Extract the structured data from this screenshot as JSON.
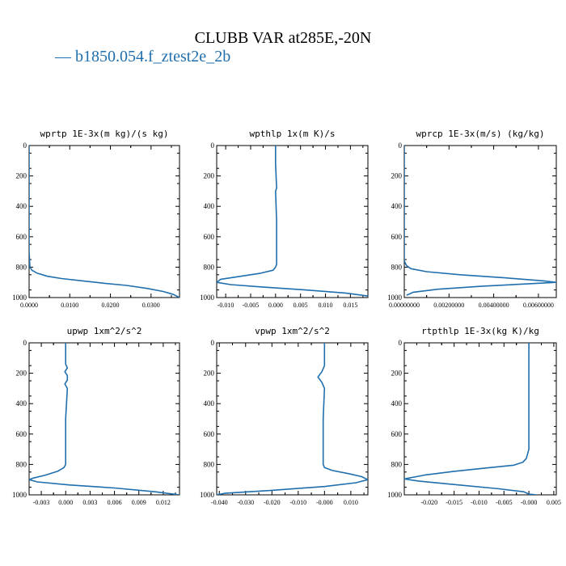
{
  "figure": {
    "title": "CLUBB VAR at285E,-20N",
    "legend_label": "b1850.054.f_ztest2e_2b",
    "line_color": "#1f6fae"
  },
  "chart_data": [
    {
      "type": "line",
      "title": "wprtp  1E-3x(m kg)/(s kg)",
      "xlim": [
        0.0,
        0.037
      ],
      "xticks": [
        0.0,
        0.01,
        0.02,
        0.03
      ],
      "xtick_labels": [
        "0.0000",
        "0.0100",
        "0.0200",
        "0.0300"
      ],
      "ylim": [
        1000,
        0
      ],
      "yticks": [
        0,
        200,
        400,
        600,
        800,
        1000
      ],
      "series": [
        {
          "x": [
            0.0,
            0.0,
            0.0,
            0.0002,
            0.0007,
            0.002,
            0.0045,
            0.008,
            0.013,
            0.018,
            0.024,
            0.029,
            0.033,
            0.0355,
            0.037
          ],
          "y": [
            0,
            300,
            700,
            800,
            820,
            840,
            860,
            875,
            890,
            905,
            920,
            940,
            960,
            980,
            1000
          ]
        }
      ]
    },
    {
      "type": "line",
      "title": "wpthlp  1x(m K)/s",
      "xlim": [
        -0.0118,
        0.0185
      ],
      "xticks": [
        -0.01,
        -0.005,
        0.0,
        0.005,
        0.01,
        0.015
      ],
      "xtick_labels": [
        "-0.010",
        "-0.005",
        "0.000",
        "0.005",
        "0.010",
        "0.015"
      ],
      "ylim": [
        1000,
        0
      ],
      "yticks": [
        0,
        200,
        400,
        600,
        800,
        1000
      ],
      "series": [
        {
          "x": [
            0.0,
            0.0,
            0.0002,
            0.0,
            0.0002,
            0.0002,
            0.0,
            -0.0005,
            -0.003,
            -0.007,
            -0.011,
            -0.0118,
            -0.009,
            -0.003,
            0.006,
            0.014,
            0.0185
          ],
          "y": [
            0,
            120,
            280,
            300,
            500,
            780,
            800,
            820,
            840,
            860,
            880,
            900,
            915,
            930,
            950,
            970,
            990
          ]
        }
      ]
    },
    {
      "type": "line",
      "title": "wprcp  1E-3x(m/s) (kg/kg)",
      "xlim": [
        0.0,
        0.0068
      ],
      "xticks": [
        0.0,
        0.002,
        0.004,
        0.006
      ],
      "xtick_labels": [
        "0.00000000",
        "0.00200000",
        "0.00400000",
        "0.00600000"
      ],
      "ylim": [
        1000,
        0
      ],
      "yticks": [
        0,
        200,
        400,
        600,
        800,
        1000
      ],
      "series": [
        {
          "x": [
            0.0,
            0.0,
            0.0001,
            0.0003,
            0.001,
            0.0025,
            0.0045,
            0.0062,
            0.0068,
            0.0055,
            0.0035,
            0.0015,
            0.0004,
            0.0001
          ],
          "y": [
            0,
            760,
            790,
            810,
            830,
            850,
            870,
            890,
            900,
            910,
            925,
            945,
            965,
            985
          ]
        }
      ]
    },
    {
      "type": "line",
      "title": "upwp  1xm^2/s^2",
      "xlim": [
        -0.0045,
        0.014
      ],
      "xticks": [
        -0.003,
        0.0,
        0.003,
        0.006,
        0.009,
        0.012
      ],
      "xtick_labels": [
        "-0.003",
        "0.000",
        "0.003",
        "0.006",
        "0.009",
        "0.012"
      ],
      "ylim": [
        1000,
        0
      ],
      "yticks": [
        0,
        200,
        400,
        600,
        800,
        1000
      ],
      "series": [
        {
          "x": [
            0.0,
            0.0,
            0.0002,
            -0.0001,
            0.0002,
            0.0002,
            -0.0001,
            0.0002,
            0.0,
            0.0,
            -0.0002,
            -0.001,
            -0.0025,
            -0.004,
            -0.0045,
            -0.0035,
            0.0005,
            0.006,
            0.011,
            0.014
          ],
          "y": [
            0,
            140,
            165,
            190,
            215,
            245,
            270,
            300,
            500,
            800,
            820,
            845,
            870,
            890,
            900,
            915,
            935,
            955,
            980,
            1000
          ]
        }
      ]
    },
    {
      "type": "line",
      "title": "vpwp  1xm^2/s^2",
      "xlim": [
        -0.041,
        0.0165
      ],
      "xticks": [
        -0.04,
        -0.03,
        -0.02,
        -0.01,
        0.0,
        0.01
      ],
      "xtick_labels": [
        "-0.040",
        "-0.030",
        "-0.020",
        "-0.010",
        "-0.000",
        "0.010"
      ],
      "ylim": [
        1000,
        0
      ],
      "yticks": [
        0,
        200,
        400,
        600,
        800,
        1000
      ],
      "series": [
        {
          "x": [
            0.0,
            0.0,
            -0.001,
            -0.0025,
            -0.001,
            0.0,
            -0.0005,
            -0.0005,
            0.0,
            0.003,
            0.009,
            0.014,
            0.0165,
            0.012,
            0.0,
            -0.02,
            -0.038,
            -0.041
          ],
          "y": [
            0,
            150,
            190,
            225,
            260,
            300,
            500,
            800,
            820,
            840,
            860,
            880,
            900,
            920,
            945,
            970,
            990,
            1000
          ]
        }
      ]
    },
    {
      "type": "line",
      "title": "rtpthlp  1E-3x(kg K)/kg",
      "xlim": [
        -0.025,
        0.0055
      ],
      "xticks": [
        -0.02,
        -0.015,
        -0.01,
        -0.005,
        0.0,
        0.005
      ],
      "xtick_labels": [
        "-0.020",
        "-0.015",
        "-0.010",
        "-0.005",
        "-0.000",
        "0.005"
      ],
      "ylim": [
        1000,
        0
      ],
      "yticks": [
        0,
        200,
        400,
        600,
        800,
        1000
      ],
      "series": [
        {
          "x": [
            0.0,
            0.0,
            -0.0005,
            -0.0012,
            -0.003,
            -0.009,
            -0.015,
            -0.021,
            -0.025,
            -0.022,
            -0.014,
            -0.006,
            -0.001,
            0.0,
            0.0015
          ],
          "y": [
            0,
            700,
            760,
            785,
            805,
            825,
            845,
            870,
            895,
            910,
            935,
            960,
            980,
            995,
            1000
          ]
        }
      ]
    }
  ]
}
